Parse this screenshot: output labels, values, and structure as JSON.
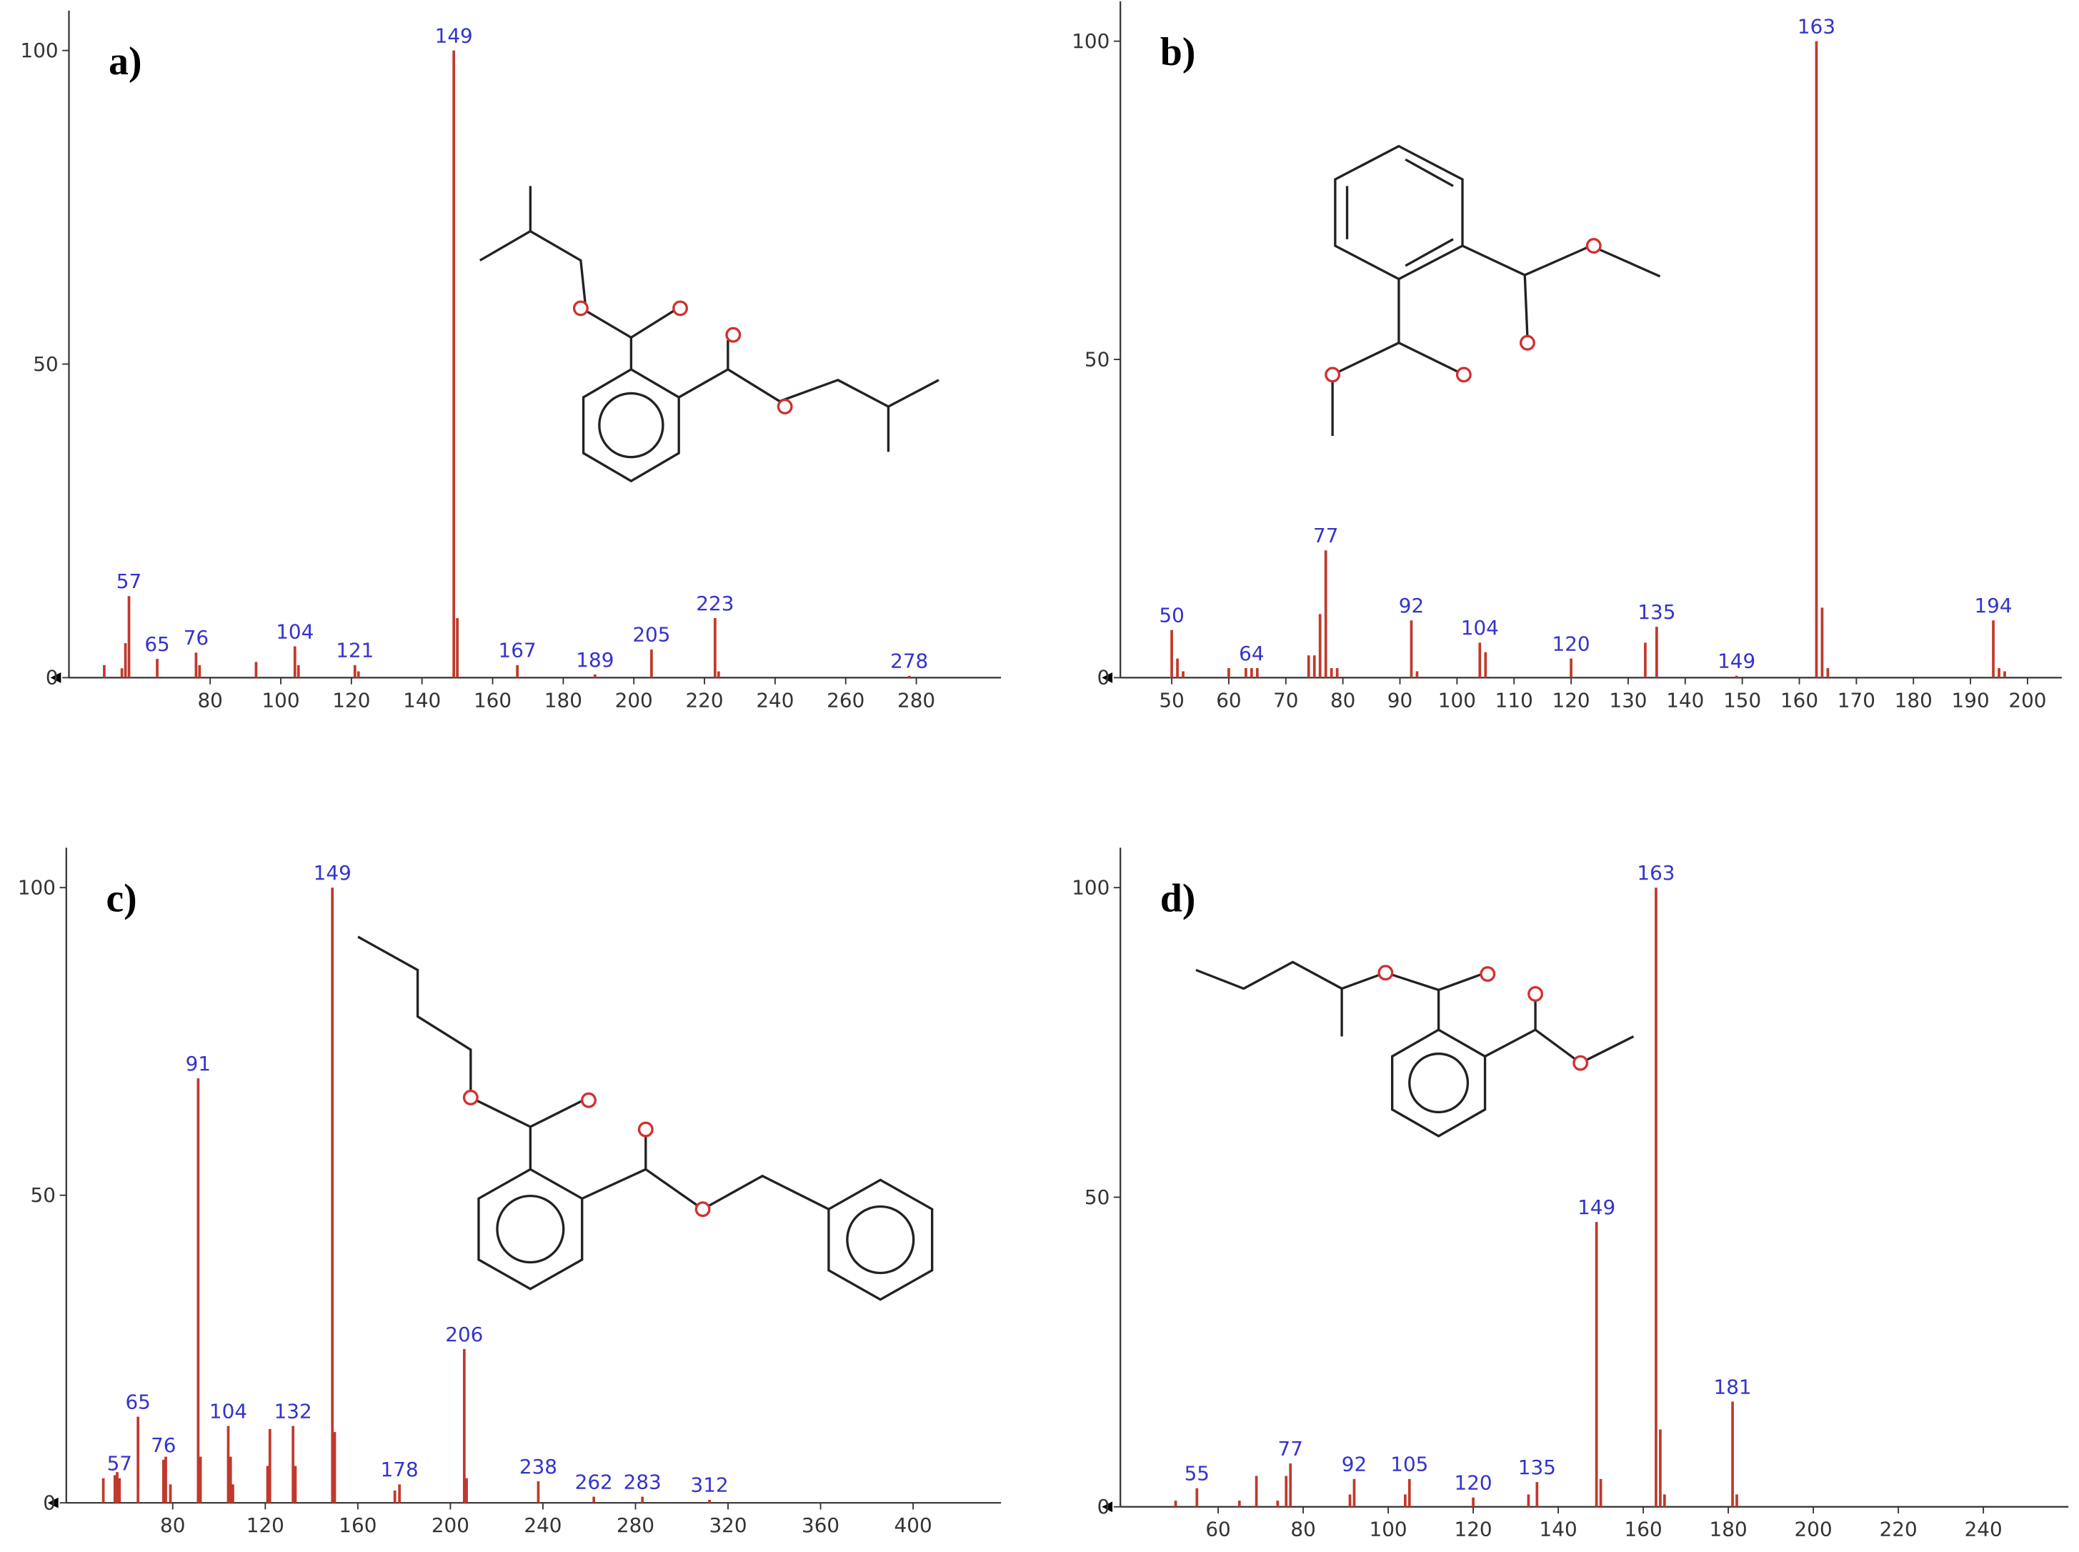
{
  "chart_data": [
    {
      "type": "bar",
      "title": "a)",
      "xlim": [
        40,
        304
      ],
      "ylim": [
        0,
        100
      ],
      "xticks": [
        80,
        100,
        120,
        140,
        160,
        180,
        200,
        220,
        240,
        260,
        280
      ],
      "yticks": [
        0,
        50,
        100
      ],
      "color": "#c0392b",
      "x": [
        50,
        55,
        56,
        57,
        65,
        76,
        77,
        93,
        104,
        105,
        121,
        122,
        149,
        150,
        167,
        189,
        205,
        223,
        224,
        278
      ],
      "values": [
        2,
        1.5,
        5.5,
        13,
        3,
        4,
        2,
        2.5,
        5,
        2,
        2,
        1,
        100,
        9.5,
        2,
        0.5,
        4.5,
        9.5,
        1,
        0.3
      ],
      "labels": [
        null,
        null,
        null,
        57,
        65,
        76,
        null,
        null,
        104,
        null,
        121,
        null,
        149,
        null,
        167,
        189,
        205,
        223,
        null,
        278
      ]
    },
    {
      "type": "bar",
      "title": "b)",
      "xlim": [
        41,
        206
      ],
      "ylim": [
        0,
        100
      ],
      "xticks": [
        50,
        60,
        70,
        80,
        90,
        100,
        110,
        120,
        130,
        140,
        150,
        160,
        170,
        180,
        190,
        200
      ],
      "yticks": [
        0,
        50,
        100
      ],
      "color": "#c0392b",
      "x": [
        50,
        51,
        52,
        60,
        63,
        64,
        65,
        74,
        75,
        76,
        77,
        78,
        79,
        92,
        93,
        104,
        105,
        120,
        133,
        135,
        149,
        163,
        164,
        165,
        194,
        195,
        196
      ],
      "values": [
        7.5,
        3,
        1,
        1.5,
        1.5,
        1.5,
        1.5,
        3.5,
        3.5,
        10,
        20,
        1.5,
        1.5,
        9,
        1,
        5.5,
        4,
        3,
        5.5,
        8,
        0.3,
        100,
        11,
        1.5,
        9,
        1.5,
        1
      ],
      "labels": [
        50,
        null,
        null,
        null,
        null,
        64,
        null,
        null,
        null,
        null,
        77,
        null,
        null,
        92,
        null,
        104,
        null,
        120,
        null,
        135,
        149,
        163,
        null,
        null,
        194,
        null,
        null
      ]
    },
    {
      "type": "bar",
      "title": "c)",
      "xlim": [
        34,
        438
      ],
      "ylim": [
        0,
        100
      ],
      "xticks": [
        80,
        120,
        160,
        200,
        240,
        280,
        320,
        360,
        400
      ],
      "yticks": [
        0,
        50,
        100
      ],
      "color": "#c0392b",
      "x": [
        50,
        55,
        56,
        57,
        65,
        76,
        77,
        79,
        91,
        92,
        104,
        105,
        106,
        121,
        122,
        132,
        133,
        149,
        150,
        176,
        178,
        206,
        207,
        238,
        262,
        283,
        312
      ],
      "values": [
        4,
        4.5,
        5,
        4,
        14,
        7,
        7.5,
        3,
        69,
        7.5,
        12.5,
        7.5,
        3,
        6,
        12,
        12.5,
        6,
        100,
        11.5,
        2,
        3,
        25,
        4,
        3.5,
        1,
        1,
        0.5
      ],
      "labels": [
        null,
        null,
        null,
        57,
        65,
        76,
        null,
        null,
        91,
        null,
        104,
        null,
        null,
        null,
        null,
        132,
        null,
        149,
        null,
        null,
        178,
        206,
        null,
        238,
        262,
        283,
        312
      ]
    },
    {
      "type": "bar",
      "title": "d)",
      "xlim": [
        37,
        260
      ],
      "ylim": [
        0,
        100
      ],
      "xticks": [
        60,
        80,
        100,
        120,
        140,
        160,
        180,
        200,
        220,
        240
      ],
      "yticks": [
        0,
        50,
        100
      ],
      "color": "#c0392b",
      "x": [
        50,
        55,
        65,
        69,
        74,
        76,
        77,
        91,
        92,
        104,
        105,
        120,
        133,
        135,
        149,
        150,
        163,
        164,
        165,
        181,
        182
      ],
      "values": [
        1,
        3,
        1,
        5,
        1,
        5,
        7,
        2,
        4.5,
        2,
        4.5,
        1.5,
        2,
        4,
        46,
        4.5,
        100,
        12.5,
        2,
        17,
        2
      ],
      "labels": [
        null,
        55,
        null,
        null,
        null,
        null,
        77,
        null,
        92,
        null,
        105,
        120,
        null,
        135,
        149,
        null,
        163,
        null,
        null,
        181,
        null
      ]
    }
  ]
}
